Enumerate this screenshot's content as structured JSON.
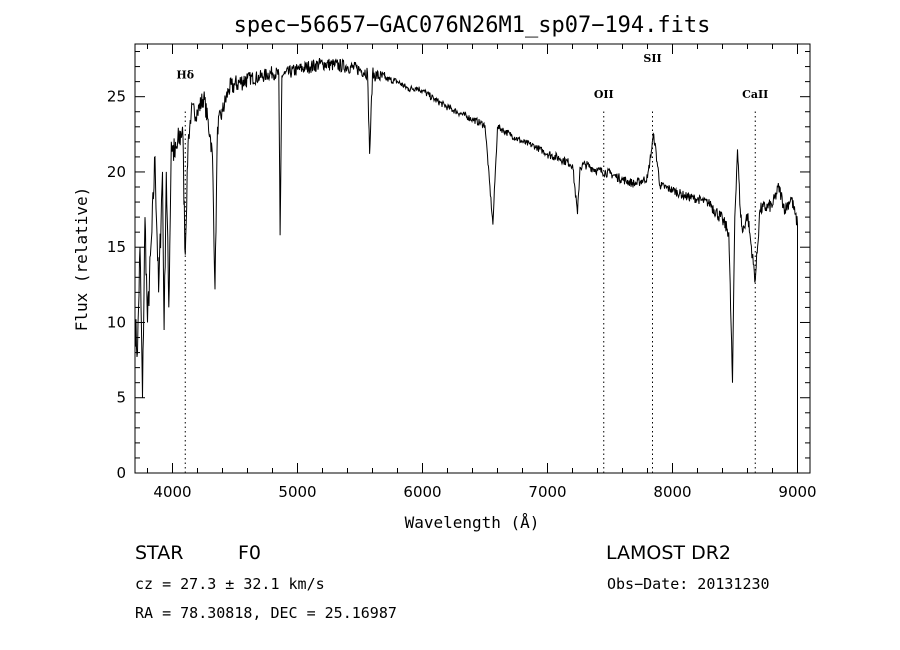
{
  "chart_data": {
    "type": "line",
    "title": "spec−56657−GAC076N26M1_sp07−194.fits",
    "xlabel": "Wavelength (Å)",
    "ylabel": "Flux (relative)",
    "xlim": [
      3700,
      9100
    ],
    "ylim": [
      0,
      28.5
    ],
    "xticks": [
      4000,
      5000,
      6000,
      7000,
      8000,
      9000
    ],
    "yticks": [
      0,
      5,
      10,
      15,
      20,
      25
    ],
    "grid": false,
    "legend": "none",
    "line_color": "#000000",
    "marker_color": "#000000",
    "line_markers": [
      {
        "label": "Hδ",
        "x": 4102
      },
      {
        "label": "OII",
        "x": 7450
      },
      {
        "label": "SII",
        "x": 7840
      },
      {
        "label": "CaII",
        "x": 8662
      }
    ],
    "series": [
      {
        "x": [
          3700,
          3720,
          3740,
          3760,
          3780,
          3800,
          3835,
          3860,
          3889,
          3920,
          3933,
          3950,
          3970,
          3990,
          4020,
          4050,
          4080,
          4102,
          4125,
          4150,
          4200,
          4250,
          4300,
          4320,
          4340,
          4360,
          4400,
          4450,
          4500,
          4550,
          4600,
          4700,
          4800,
          4850,
          4861,
          4875,
          4900,
          5000,
          5100,
          5200,
          5300,
          5400,
          5500,
          5560,
          5577,
          5600,
          5700,
          5800,
          5890,
          5950,
          6000,
          6100,
          6200,
          6300,
          6400,
          6500,
          6563,
          6600,
          6700,
          6800,
          6900,
          7000,
          7100,
          7200,
          7240,
          7260,
          7300,
          7400,
          7500,
          7600,
          7700,
          7800,
          7850,
          7900,
          8000,
          8100,
          8200,
          8300,
          8400,
          8450,
          8480,
          8498,
          8520,
          8542,
          8560,
          8600,
          8662,
          8700,
          8800,
          8850,
          8900,
          8950,
          8980,
          9000
        ],
        "y": [
          10,
          8,
          15,
          5,
          17,
          10,
          16,
          21,
          12,
          20,
          9.5,
          20,
          11,
          22,
          21,
          22,
          23,
          14.5,
          22,
          24,
          24,
          25,
          22.5,
          21,
          12.2,
          23,
          24,
          25.5,
          25.8,
          26,
          26.2,
          26.3,
          26.6,
          26.5,
          15.8,
          26.4,
          26.5,
          26.8,
          27,
          27.2,
          27.1,
          27,
          26.8,
          26.6,
          21.2,
          26.5,
          26.2,
          26,
          25.5,
          25.6,
          25.4,
          24.8,
          24.3,
          23.9,
          23.5,
          23.1,
          16.5,
          23.0,
          22.5,
          22.0,
          21.7,
          21.2,
          20.9,
          20.5,
          17.2,
          20.3,
          20.5,
          20.1,
          19.9,
          19.5,
          19.2,
          19.6,
          22.5,
          19.1,
          18.8,
          18.4,
          18.2,
          17.9,
          16.8,
          16.0,
          6.0,
          17.0,
          21.5,
          17.5,
          16.0,
          17.2,
          12.8,
          17.5,
          17.8,
          19.0,
          17.5,
          18.3,
          17.2,
          16.5
        ]
      }
    ]
  },
  "info": {
    "object_type": "STAR",
    "subclass": "F0",
    "survey": "LAMOST DR2",
    "redshift": "cz = 27.3 ± 32.1 km/s",
    "obs_date": "Obs−Date: 20131230",
    "coords": "RA =  78.30818, DEC =  25.16987"
  }
}
